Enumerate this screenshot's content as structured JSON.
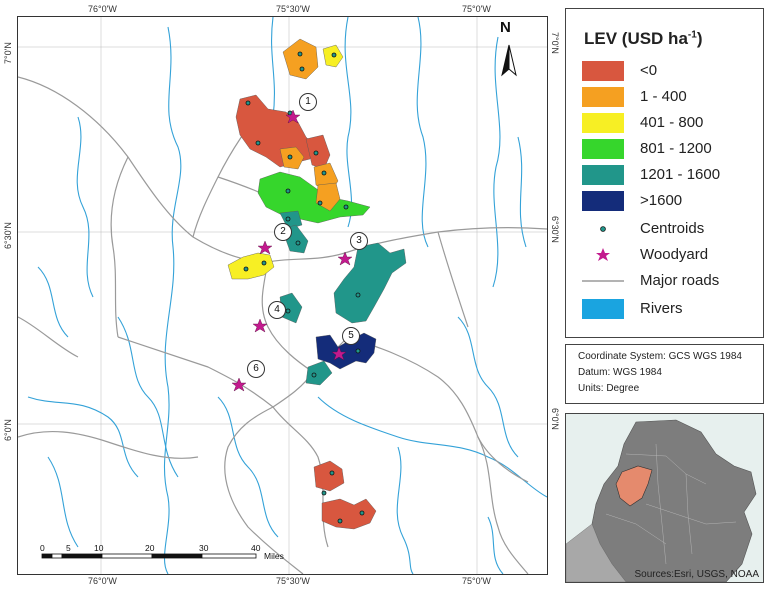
{
  "map": {
    "top_ticks": [
      "76°0'W",
      "75°30'W",
      "75°0'W"
    ],
    "bottom_ticks": [
      "76°0'W",
      "75°30'W",
      "75°0'W"
    ],
    "left_ticks": [
      "7°0'N",
      "6°30'N",
      "6°0'N"
    ],
    "right_ticks": [
      "7°0'N",
      "6°30'N",
      "6°0'N"
    ],
    "north_label": "N",
    "site_labels": [
      "1",
      "2",
      "3",
      "4",
      "5",
      "6"
    ],
    "scalebar": {
      "labels": [
        "0",
        "5",
        "10",
        "20",
        "30",
        "40"
      ],
      "unit": "Miles"
    },
    "colors": {
      "lt0": "#d8573f",
      "b1_400": "#f5a021",
      "b401_800": "#f7ef24",
      "b801_1200": "#36d62c",
      "b1201_1600": "#21968a",
      "gt1600": "#142c7a",
      "woodyard": "#c31a8e",
      "roads": "#9a9a9a",
      "rivers": "#34a2d8"
    }
  },
  "legend": {
    "title_main": "LEV (USD ha",
    "title_sup": "-1",
    "title_close": ")",
    "items": [
      {
        "label": "<0",
        "color": "#d8573f"
      },
      {
        "label": "1 - 400",
        "color": "#f5a021"
      },
      {
        "label": "401 - 800",
        "color": "#f7ef24"
      },
      {
        "label": "801 - 1200",
        "color": "#36d62c"
      },
      {
        "label": "1201 - 1600",
        "color": "#21968a"
      },
      {
        "label": ">1600",
        "color": "#142c7a"
      },
      {
        "label": "Centroids",
        "icon": "centroid-icon"
      },
      {
        "label": "Woodyard",
        "icon": "star-icon"
      },
      {
        "label": "Major roads",
        "icon": "road-line-icon"
      },
      {
        "label": "Rivers",
        "color": "#1aa4e0"
      }
    ]
  },
  "coordinate_system": {
    "line1": "Coordinate System: GCS WGS  1984",
    "line2": "Datum: WGS 1984",
    "line3": "Units: Degree"
  },
  "inset": {
    "credit": "Sources:Esri, USGS, NOAA"
  }
}
